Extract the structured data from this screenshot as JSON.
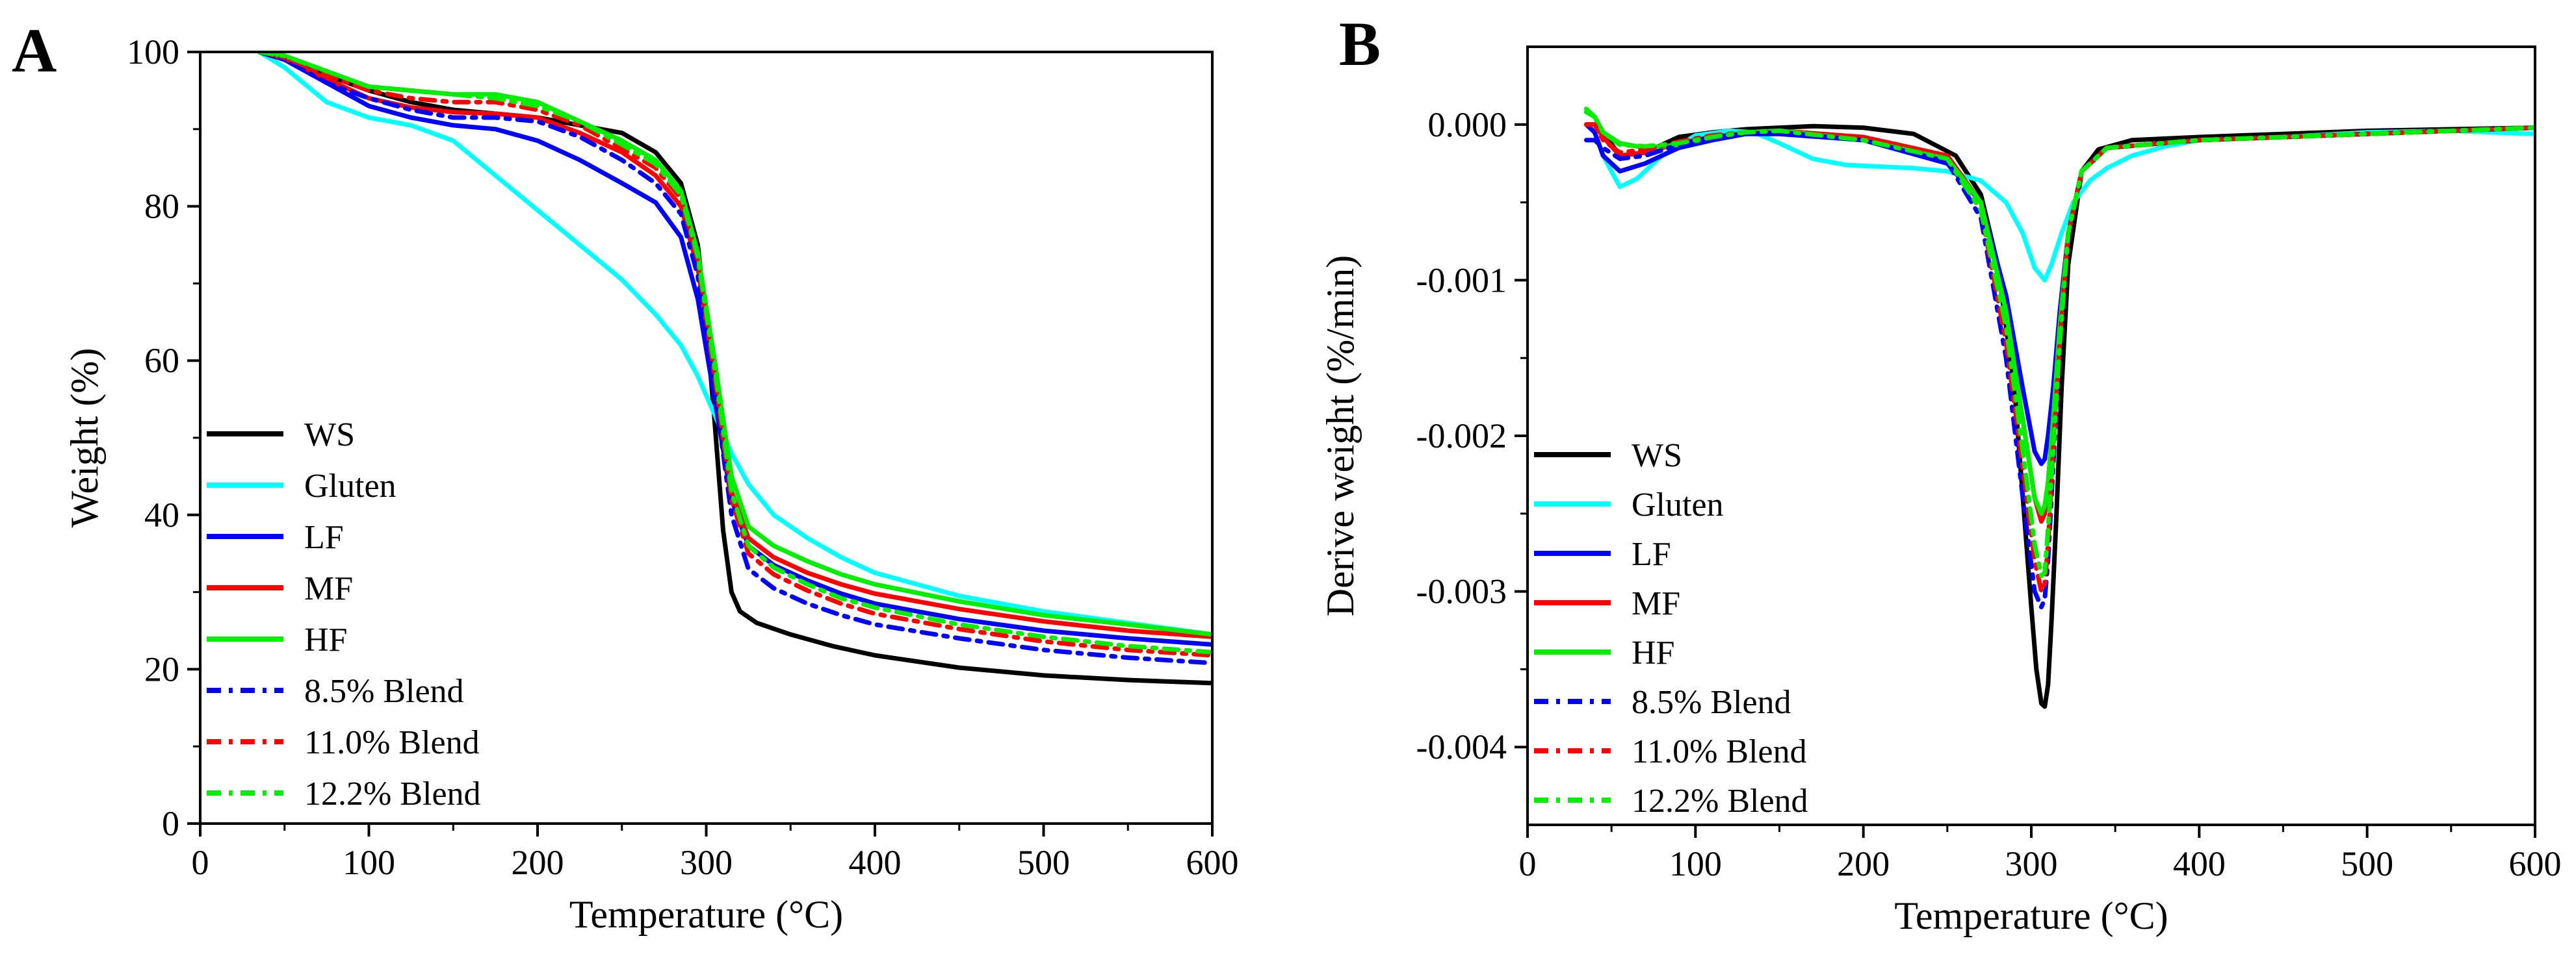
{
  "chart_data": [
    {
      "type": "line",
      "panel_label": "A",
      "xlabel": "Temperature (°C)",
      "ylabel": "Weight (%)",
      "xlim": [
        0,
        600
      ],
      "ylim": [
        0,
        100
      ],
      "xticks": [
        0,
        100,
        200,
        300,
        400,
        500,
        600
      ],
      "yticks": [
        0,
        20,
        40,
        60,
        80,
        100
      ],
      "grid": false,
      "legend_position": "left",
      "series": [
        {
          "name": "WS",
          "color": "#000000",
          "dash": "solid",
          "x": [
            35,
            50,
            75,
            100,
            125,
            150,
            175,
            200,
            225,
            250,
            270,
            285,
            295,
            300,
            305,
            310,
            315,
            320,
            330,
            350,
            375,
            400,
            450,
            500,
            550,
            600
          ],
          "y": [
            100,
            99.5,
            97,
            95,
            93.5,
            92.5,
            92,
            91.5,
            90.5,
            89.5,
            87,
            83,
            75,
            65,
            52,
            38,
            30,
            27.5,
            26,
            24.5,
            23,
            21.8,
            20.2,
            19.2,
            18.6,
            18.2
          ]
        },
        {
          "name": "Gluten",
          "color": "#00FFFF",
          "dash": "solid",
          "x": [
            35,
            50,
            75,
            100,
            125,
            150,
            175,
            200,
            225,
            250,
            270,
            285,
            295,
            305,
            315,
            325,
            340,
            360,
            380,
            400,
            450,
            500,
            550,
            600
          ],
          "y": [
            100,
            98,
            93.5,
            91.5,
            90.5,
            88.5,
            84,
            79.5,
            75,
            70.5,
            66,
            62,
            58,
            53,
            48,
            44,
            40,
            37,
            34.5,
            32.5,
            29.5,
            27.5,
            26,
            24.5
          ]
        },
        {
          "name": "LF",
          "color": "#0000FF",
          "dash": "solid",
          "x": [
            35,
            50,
            75,
            100,
            125,
            150,
            175,
            200,
            225,
            250,
            270,
            285,
            295,
            305,
            315,
            325,
            340,
            360,
            380,
            400,
            450,
            500,
            550,
            600
          ],
          "y": [
            100,
            99,
            96,
            93,
            91.5,
            90.5,
            90,
            88.5,
            86,
            83,
            80.5,
            76,
            68,
            55,
            42,
            36,
            33.5,
            31.5,
            29.8,
            28.5,
            26.5,
            25,
            24,
            23.2
          ]
        },
        {
          "name": "MF",
          "color": "#FF0000",
          "dash": "solid",
          "x": [
            35,
            50,
            75,
            100,
            125,
            150,
            175,
            200,
            225,
            250,
            270,
            285,
            295,
            305,
            315,
            325,
            340,
            360,
            380,
            400,
            450,
            500,
            550,
            600
          ],
          "y": [
            100,
            99.2,
            96.5,
            94,
            92.8,
            92.2,
            92,
            91.5,
            89.5,
            87,
            84,
            80,
            72,
            58,
            43,
            37,
            34.5,
            32.5,
            31,
            29.8,
            27.8,
            26.2,
            25,
            24.2
          ]
        },
        {
          "name": "HF",
          "color": "#00EE00",
          "dash": "solid",
          "x": [
            35,
            50,
            75,
            100,
            125,
            150,
            175,
            200,
            225,
            250,
            270,
            285,
            295,
            305,
            315,
            325,
            340,
            360,
            380,
            400,
            450,
            500,
            550,
            600
          ],
          "y": [
            100,
            99.5,
            97.5,
            95.5,
            95,
            94.5,
            94.5,
            93.5,
            91,
            88.5,
            86,
            82,
            74,
            60,
            45,
            38.5,
            36,
            34,
            32.3,
            31,
            28.8,
            27,
            25.8,
            24.5
          ]
        },
        {
          "name": "8.5% Blend",
          "color": "#0000FF",
          "dash": "dashdot",
          "x": [
            35,
            50,
            75,
            100,
            125,
            150,
            175,
            200,
            225,
            250,
            270,
            285,
            295,
            305,
            315,
            325,
            340,
            360,
            380,
            400,
            450,
            500,
            550,
            600
          ],
          "y": [
            100,
            99,
            96,
            94,
            92.5,
            91.5,
            91.5,
            91,
            89,
            86,
            83,
            79,
            71,
            56,
            40,
            33,
            30.5,
            28.5,
            27,
            25.8,
            24,
            22.5,
            21.5,
            20.8
          ]
        },
        {
          "name": "11.0% Blend",
          "color": "#FF0000",
          "dash": "dashdot",
          "x": [
            35,
            50,
            75,
            100,
            125,
            150,
            175,
            200,
            225,
            250,
            270,
            285,
            295,
            305,
            315,
            325,
            340,
            360,
            380,
            400,
            450,
            500,
            550,
            600
          ],
          "y": [
            100,
            99.3,
            97,
            95,
            94,
            93.5,
            93.5,
            92.5,
            90.5,
            87.5,
            85,
            81,
            73,
            58,
            42,
            35,
            32.3,
            30.2,
            28.5,
            27.2,
            25.2,
            23.6,
            22.5,
            21.8
          ]
        },
        {
          "name": "12.2% Blend",
          "color": "#00EE00",
          "dash": "dashdot",
          "x": [
            35,
            50,
            75,
            100,
            125,
            150,
            175,
            200,
            225,
            250,
            270,
            285,
            295,
            305,
            315,
            325,
            340,
            360,
            380,
            400,
            450,
            500,
            550,
            600
          ],
          "y": [
            100,
            99.5,
            97.5,
            95.5,
            95,
            94.5,
            94,
            93,
            91,
            88,
            85.5,
            81.5,
            73.5,
            59,
            43,
            36,
            33.2,
            31,
            29.2,
            28,
            25.8,
            24.2,
            23,
            22.2
          ]
        }
      ]
    },
    {
      "type": "line",
      "panel_label": "B",
      "xlabel": "Temperature (°C)",
      "ylabel": "Derive weight (%/min)",
      "xlim": [
        0,
        600
      ],
      "ylim": [
        -0.0045,
        0.0005
      ],
      "xticks": [
        0,
        100,
        200,
        300,
        400,
        500,
        600
      ],
      "yticks": [
        0,
        -0.001,
        -0.002,
        -0.003,
        -0.004
      ],
      "ytick_labels": [
        "0.000",
        "-0.001",
        "-0.002",
        "-0.003",
        "-0.004"
      ],
      "grid": false,
      "legend_position": "left",
      "series": [
        {
          "name": "WS",
          "color": "#000000",
          "dash": "solid",
          "x": [
            35,
            40,
            45,
            55,
            70,
            90,
            110,
            130,
            150,
            170,
            200,
            230,
            255,
            270,
            280,
            290,
            295,
            300,
            303,
            306,
            308,
            310,
            312,
            315,
            318,
            322,
            330,
            340,
            360,
            400,
            450,
            500,
            550,
            600
          ],
          "y": [
            0,
            0,
            -5e-05,
            -0.0002,
            -0.00018,
            -8e-05,
            -5e-05,
            -3e-05,
            -2e-05,
            -1e-05,
            -2e-05,
            -6e-05,
            -0.0002,
            -0.00045,
            -0.0009,
            -0.0017,
            -0.0024,
            -0.0031,
            -0.0035,
            -0.00372,
            -0.00374,
            -0.0036,
            -0.0032,
            -0.0025,
            -0.0017,
            -0.0009,
            -0.0003,
            -0.00016,
            -0.0001,
            -8e-05,
            -6e-05,
            -4e-05,
            -3e-05,
            -2e-05
          ]
        },
        {
          "name": "Gluten",
          "color": "#00FFFF",
          "dash": "solid",
          "x": [
            35,
            40,
            45,
            55,
            65,
            80,
            100,
            120,
            135,
            150,
            170,
            190,
            210,
            230,
            250,
            270,
            285,
            295,
            302,
            308,
            312,
            318,
            325,
            335,
            345,
            360,
            380,
            400,
            450,
            500,
            550,
            600
          ],
          "y": [
            0,
            -5e-05,
            -0.0002,
            -0.0004,
            -0.00035,
            -0.0002,
            -7e-05,
            -4e-05,
            -5e-05,
            -0.00012,
            -0.00022,
            -0.00026,
            -0.00027,
            -0.00028,
            -0.0003,
            -0.00036,
            -0.0005,
            -0.0007,
            -0.00092,
            -0.001,
            -0.0009,
            -0.0007,
            -0.0005,
            -0.00036,
            -0.00028,
            -0.0002,
            -0.00014,
            -0.0001,
            -8e-05,
            -5e-05,
            -4e-05,
            -6e-05
          ]
        },
        {
          "name": "LF",
          "color": "#0000FF",
          "dash": "solid",
          "x": [
            35,
            40,
            45,
            55,
            70,
            90,
            110,
            130,
            150,
            200,
            250,
            270,
            285,
            295,
            302,
            306,
            308,
            310,
            313,
            317,
            322,
            330,
            345,
            400,
            600
          ],
          "y": [
            0,
            -5e-05,
            -0.0002,
            -0.0003,
            -0.00025,
            -0.00015,
            -0.0001,
            -6e-05,
            -6e-05,
            -0.0001,
            -0.00025,
            -0.0005,
            -0.0011,
            -0.0017,
            -0.0021,
            -0.00218,
            -0.00215,
            -0.002,
            -0.0017,
            -0.0012,
            -0.0007,
            -0.0003,
            -0.00015,
            -0.0001,
            -2e-05
          ]
        },
        {
          "name": "MF",
          "color": "#FF0000",
          "dash": "solid",
          "x": [
            35,
            40,
            45,
            55,
            70,
            90,
            110,
            130,
            150,
            200,
            250,
            270,
            285,
            295,
            302,
            306,
            308,
            310,
            313,
            317,
            322,
            330,
            345,
            400,
            600
          ],
          "y": [
            0,
            0,
            -8e-05,
            -0.0002,
            -0.00018,
            -0.00012,
            -8e-05,
            -5e-05,
            -4e-05,
            -8e-05,
            -0.0002,
            -0.0005,
            -0.0012,
            -0.0019,
            -0.0024,
            -0.00255,
            -0.0025,
            -0.0023,
            -0.0019,
            -0.0013,
            -0.0007,
            -0.0003,
            -0.00015,
            -0.0001,
            -2e-05
          ]
        },
        {
          "name": "HF",
          "color": "#00EE00",
          "dash": "solid",
          "x": [
            35,
            40,
            45,
            55,
            70,
            90,
            110,
            130,
            150,
            200,
            250,
            270,
            285,
            295,
            302,
            306,
            308,
            310,
            313,
            317,
            322,
            330,
            345,
            400,
            600
          ],
          "y": [
            0.0001,
            5e-05,
            -5e-05,
            -0.00012,
            -0.00015,
            -0.00013,
            -8e-05,
            -5e-05,
            -4e-05,
            -0.0001,
            -0.00022,
            -0.0005,
            -0.0012,
            -0.0019,
            -0.0024,
            -0.0025,
            -0.00245,
            -0.0023,
            -0.0019,
            -0.0013,
            -0.0007,
            -0.0003,
            -0.00015,
            -0.0001,
            -2e-05
          ]
        },
        {
          "name": "8.5% Blend",
          "color": "#0000FF",
          "dash": "dashdot",
          "x": [
            35,
            40,
            45,
            55,
            70,
            90,
            110,
            130,
            150,
            200,
            250,
            270,
            285,
            295,
            302,
            306,
            308,
            310,
            313,
            317,
            322,
            330,
            345,
            400,
            600
          ],
          "y": [
            -0.0001,
            -0.0001,
            -0.00015,
            -0.00022,
            -0.0002,
            -0.00013,
            -8e-05,
            -6e-05,
            -5e-05,
            -0.0001,
            -0.00024,
            -0.0006,
            -0.0015,
            -0.0024,
            -0.003,
            -0.0031,
            -0.00305,
            -0.0028,
            -0.0022,
            -0.0014,
            -0.0007,
            -0.0003,
            -0.00015,
            -0.0001,
            -2e-05
          ]
        },
        {
          "name": "11.0% Blend",
          "color": "#FF0000",
          "dash": "dashdot",
          "x": [
            35,
            40,
            45,
            55,
            70,
            90,
            110,
            130,
            150,
            200,
            250,
            270,
            285,
            295,
            302,
            306,
            308,
            310,
            313,
            317,
            322,
            330,
            345,
            400,
            600
          ],
          "y": [
            0,
            0,
            -0.0001,
            -0.00018,
            -0.00016,
            -0.00011,
            -7e-05,
            -5e-05,
            -4e-05,
            -9e-05,
            -0.00022,
            -0.00055,
            -0.0014,
            -0.0022,
            -0.0028,
            -0.003,
            -0.00295,
            -0.0027,
            -0.0021,
            -0.0014,
            -0.0007,
            -0.0003,
            -0.00015,
            -0.0001,
            -2e-05
          ]
        },
        {
          "name": "12.2% Blend",
          "color": "#00EE00",
          "dash": "dashdot",
          "x": [
            35,
            40,
            45,
            55,
            70,
            90,
            110,
            130,
            150,
            200,
            250,
            270,
            285,
            295,
            302,
            306,
            308,
            310,
            313,
            317,
            322,
            330,
            345,
            400,
            600
          ],
          "y": [
            8e-05,
            5e-05,
            -5e-05,
            -0.00013,
            -0.00014,
            -0.00012,
            -8e-05,
            -5e-05,
            -4e-05,
            -0.0001,
            -0.00022,
            -0.00055,
            -0.0013,
            -0.0021,
            -0.0027,
            -0.0029,
            -0.00288,
            -0.0026,
            -0.0021,
            -0.0014,
            -0.0007,
            -0.0003,
            -0.00015,
            -0.0001,
            -2e-05
          ]
        }
      ]
    }
  ]
}
